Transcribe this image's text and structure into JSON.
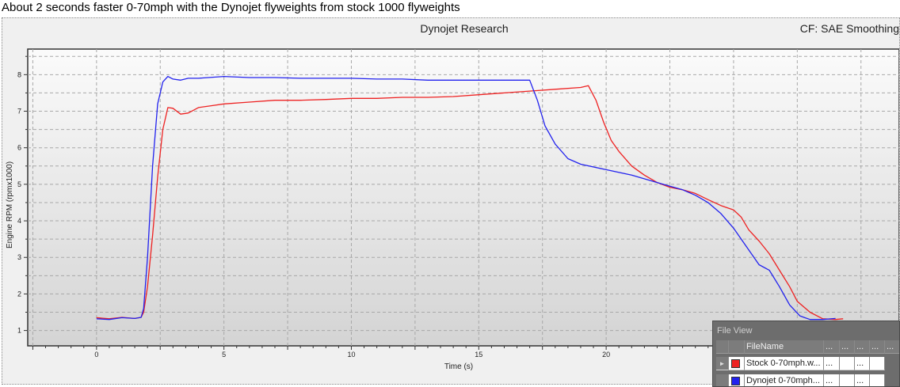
{
  "caption": "About 2 seconds faster 0-70mph with the Dynojet flyweights from stock 1000 flyweights",
  "colors": {
    "stock": "#ee2222",
    "dynojet": "#2222ee"
  },
  "chart_data": {
    "type": "line",
    "title": "Dynojet Research",
    "subtitle": "CF: SAE Smoothing",
    "xlabel": "Time (s)",
    "ylabel": "Engine RPM (rpmx1000)",
    "xlim": [
      -2.7,
      31.5
    ],
    "ylim": [
      0.58,
      8.7
    ],
    "x_ticks": [
      0,
      5,
      10,
      15,
      20
    ],
    "y_ticks": [
      1,
      2,
      3,
      4,
      5,
      6,
      7,
      8
    ],
    "grid": true,
    "series": [
      {
        "name": "Stock 0-70mph.w...",
        "color": "#ee2222",
        "x": [
          0,
          0.5,
          1.0,
          1.5,
          1.75,
          1.85,
          2.0,
          2.2,
          2.4,
          2.6,
          2.8,
          3.0,
          3.3,
          3.6,
          4.0,
          4.5,
          5.0,
          6.0,
          7.0,
          8.0,
          9.0,
          10.0,
          11.0,
          12.0,
          13.0,
          14.0,
          15.0,
          16.0,
          17.0,
          18.0,
          19.0,
          19.3,
          19.6,
          19.9,
          20.2,
          20.5,
          21.0,
          21.5,
          22.0,
          22.5,
          23.0,
          23.5,
          24.0,
          24.5,
          25.0,
          25.3,
          25.6,
          26.0,
          26.4,
          26.8,
          27.2,
          27.5,
          28.0,
          28.5,
          29.0,
          29.3
        ],
        "y": [
          1.35,
          1.32,
          1.36,
          1.33,
          1.36,
          1.5,
          2.2,
          3.6,
          5.2,
          6.5,
          7.1,
          7.08,
          6.92,
          6.95,
          7.1,
          7.15,
          7.2,
          7.25,
          7.3,
          7.3,
          7.32,
          7.35,
          7.35,
          7.38,
          7.38,
          7.4,
          7.45,
          7.5,
          7.55,
          7.6,
          7.65,
          7.7,
          7.3,
          6.7,
          6.2,
          5.9,
          5.5,
          5.25,
          5.05,
          4.92,
          4.85,
          4.75,
          4.58,
          4.42,
          4.3,
          4.1,
          3.75,
          3.45,
          3.1,
          2.65,
          2.2,
          1.8,
          1.5,
          1.32,
          1.3,
          1.32
        ]
      },
      {
        "name": "Dynojet 0-70mph...",
        "color": "#2222ee",
        "x": [
          0,
          0.5,
          1.0,
          1.5,
          1.75,
          1.85,
          2.0,
          2.2,
          2.4,
          2.6,
          2.8,
          3.0,
          3.3,
          3.6,
          4.0,
          5.0,
          6.0,
          7.0,
          8.0,
          9.0,
          10.0,
          11.0,
          12.0,
          13.0,
          14.0,
          15.0,
          16.0,
          17.0,
          17.3,
          17.6,
          18.0,
          18.5,
          19.0,
          20.0,
          21.0,
          22.0,
          22.5,
          23.0,
          23.5,
          24.0,
          24.5,
          25.0,
          25.5,
          26.0,
          26.4,
          26.8,
          27.2,
          27.6,
          28.0,
          28.5,
          29.0
        ],
        "y": [
          1.32,
          1.3,
          1.35,
          1.33,
          1.36,
          1.6,
          3.0,
          5.5,
          7.2,
          7.8,
          7.95,
          7.88,
          7.85,
          7.9,
          7.9,
          7.95,
          7.92,
          7.92,
          7.9,
          7.9,
          7.9,
          7.88,
          7.88,
          7.85,
          7.85,
          7.85,
          7.85,
          7.85,
          7.3,
          6.6,
          6.1,
          5.7,
          5.55,
          5.4,
          5.25,
          5.05,
          4.95,
          4.85,
          4.7,
          4.5,
          4.2,
          3.8,
          3.3,
          2.8,
          2.65,
          2.2,
          1.7,
          1.4,
          1.3,
          1.3,
          1.33
        ]
      }
    ]
  },
  "file_view": {
    "title": "File View",
    "header": [
      "FileName",
      "...",
      "...",
      "...",
      "...",
      "..."
    ],
    "rows": [
      {
        "name": "Stock 0-70mph.w...",
        "cells": [
          "...",
          "",
          "...",
          ""
        ]
      },
      {
        "name": "Dynojet 0-70mph...",
        "cells": [
          "...",
          "",
          "...",
          ""
        ]
      }
    ]
  }
}
